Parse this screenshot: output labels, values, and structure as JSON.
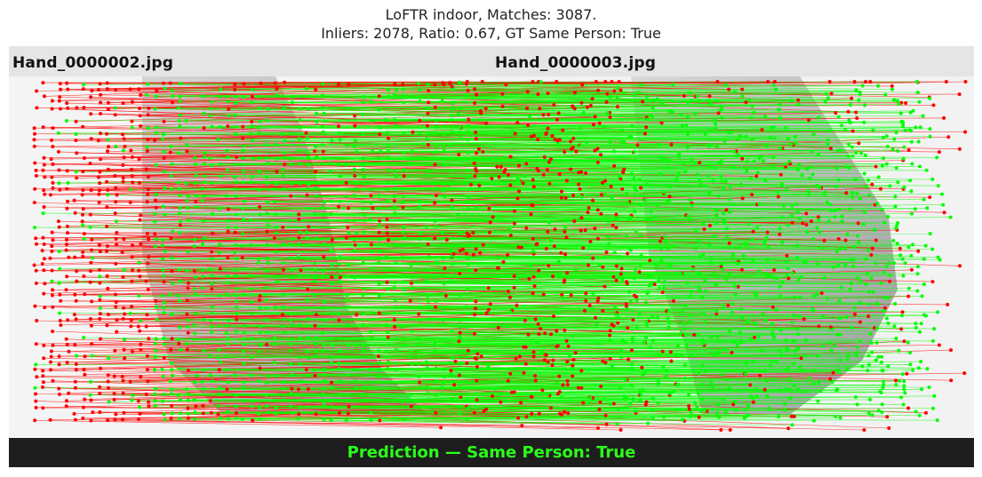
{
  "title": {
    "line1": "LoFTR indoor, Matches: 3087.",
    "line2": "Inliers: 2078, Ratio: 0.67, GT Same Person: True"
  },
  "images": {
    "left_name": "Hand_0000002.jpg",
    "right_name": "Hand_0000003.jpg"
  },
  "prediction": {
    "text": "Prediction — Same Person: True"
  },
  "colors": {
    "inlier": "#00ff00",
    "outlier": "#ff0000",
    "prediction_text": "#2aff1a",
    "prediction_bar": "#1e1e1e",
    "name_bar": "#e5e5e5"
  }
}
